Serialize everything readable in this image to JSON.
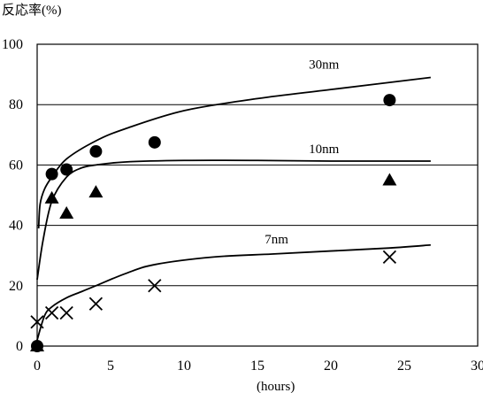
{
  "chart_data": {
    "type": "scatter",
    "title": "",
    "ylabel": "反応率(%)",
    "xlabel": "(hours)",
    "xlim": [
      0,
      30
    ],
    "ylim": [
      0,
      100
    ],
    "xticks": [
      "0",
      "5",
      "10",
      "15",
      "20",
      "25",
      "30"
    ],
    "yticks": [
      "0",
      "20",
      "40",
      "60",
      "80",
      "100"
    ],
    "gridlines_y": [
      20,
      40,
      60,
      80
    ],
    "series": [
      {
        "name": "30nm",
        "marker": "circle",
        "points": [
          [
            0,
            0
          ],
          [
            1,
            57
          ],
          [
            2,
            58.5
          ],
          [
            4,
            64.5
          ],
          [
            8,
            67.5
          ],
          [
            24,
            81.5
          ]
        ],
        "curve": [
          [
            0.1,
            39
          ],
          [
            0.2,
            47
          ],
          [
            0.5,
            52
          ],
          [
            1,
            56
          ],
          [
            2,
            62
          ],
          [
            4,
            68
          ],
          [
            6,
            72
          ],
          [
            10,
            78
          ],
          [
            15,
            82
          ],
          [
            20,
            85
          ],
          [
            26.8,
            89
          ]
        ]
      },
      {
        "name": "10nm",
        "marker": "triangle",
        "points": [
          [
            0,
            0
          ],
          [
            1,
            49
          ],
          [
            2,
            44
          ],
          [
            4,
            51
          ],
          [
            24,
            55
          ]
        ],
        "curve": [
          [
            0,
            22
          ],
          [
            0.4,
            35
          ],
          [
            1,
            48
          ],
          [
            2,
            56
          ],
          [
            3,
            59
          ],
          [
            4,
            60
          ],
          [
            6,
            61
          ],
          [
            10,
            61.5
          ],
          [
            15,
            61.5
          ],
          [
            20,
            61.3
          ],
          [
            26.8,
            61.3
          ]
        ]
      },
      {
        "name": "7nm",
        "marker": "x",
        "points": [
          [
            0,
            8
          ],
          [
            1,
            11
          ],
          [
            2,
            11
          ],
          [
            4,
            14
          ],
          [
            8,
            20
          ],
          [
            24,
            29.5
          ]
        ],
        "curve": [
          [
            0,
            2
          ],
          [
            0.5,
            10
          ],
          [
            1,
            13
          ],
          [
            2,
            16
          ],
          [
            3,
            18
          ],
          [
            4,
            20
          ],
          [
            6,
            24
          ],
          [
            8,
            27
          ],
          [
            12,
            29.5
          ],
          [
            16,
            30.5
          ],
          [
            20,
            31.5
          ],
          [
            24,
            32.5
          ],
          [
            26.8,
            33.5
          ]
        ]
      }
    ],
    "curve_labels": [
      {
        "text": "30nm",
        "x": 18.5,
        "y": 92
      },
      {
        "text": "10nm",
        "x": 18.5,
        "y": 64
      },
      {
        "text": "7nm",
        "x": 15.5,
        "y": 34
      }
    ]
  }
}
